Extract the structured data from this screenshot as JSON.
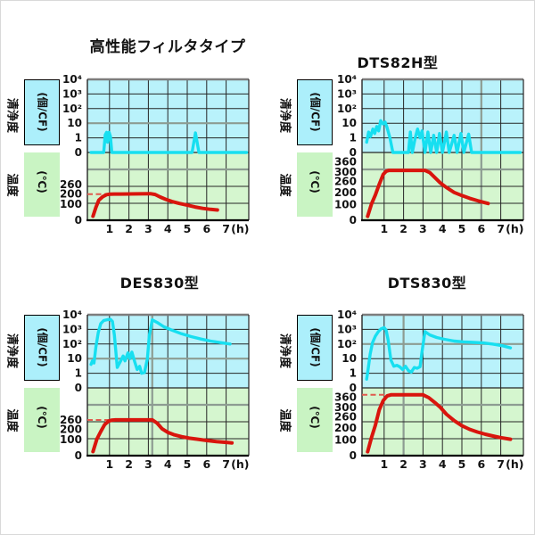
{
  "figure": {
    "background": "#ffffff",
    "description_colors": {
      "clean_area_bg": "#b9f2fb",
      "temp_area_bg": "#d5f6cf",
      "clean_box_bg": "#aceffb",
      "temp_box_bg": "#c9f4c3",
      "clean_curve": "#17dff0",
      "temp_curve": "#d9150d",
      "reference_dash": "#e05a4e",
      "grid_line": "#262626",
      "grid_emphasis": "#8d9c92",
      "top_border": "#7d7d7d",
      "axis": "#000000"
    }
  },
  "chart_data": [
    {
      "id": "high-performance-filter",
      "title": "高性能フィルタタイプ",
      "type": "line",
      "x_axis": {
        "ticks": [
          1,
          2,
          3,
          4,
          5,
          6,
          7
        ],
        "unit": "(h)"
      },
      "clean_axis": {
        "label": "清浄度",
        "unit": "(個/CF)",
        "tick_labels": [
          "10⁴",
          "10³",
          "10²",
          "10",
          "1",
          "0"
        ]
      },
      "temp_axis": {
        "label": "温度",
        "unit": "(℃)",
        "ticks": [
          {
            "value": 260,
            "frac": 0.527
          },
          {
            "value": 200,
            "frac": 0.385
          },
          {
            "value": 100,
            "frac": 0.236
          },
          {
            "value": 0,
            "frac": 0
          }
        ]
      },
      "reference_line": {
        "value": 200,
        "to_hour": 1.0
      },
      "emphasis": {
        "h_levels": [
          2
        ],
        "v_hour": null
      },
      "series": [
        {
          "name": "cleanliness",
          "axis": "clean",
          "points": [
            [
              0.05,
              0
            ],
            [
              0.7,
              0
            ],
            [
              0.78,
              1.6
            ],
            [
              0.85,
              2.4
            ],
            [
              0.9,
              0.7
            ],
            [
              0.98,
              2.4
            ],
            [
              1.05,
              1.2
            ],
            [
              1.12,
              0
            ],
            [
              5.25,
              0
            ],
            [
              5.42,
              2.2
            ],
            [
              5.6,
              0
            ],
            [
              8.05,
              0
            ]
          ]
        },
        {
          "name": "temperature",
          "axis": "temp",
          "points": [
            [
              0.15,
              25
            ],
            [
              0.3,
              80
            ],
            [
              0.45,
              140
            ],
            [
              0.65,
              175
            ],
            [
              0.85,
              195
            ],
            [
              1.05,
              200
            ],
            [
              1.6,
              201
            ],
            [
              2.5,
              202
            ],
            [
              3.1,
              203
            ],
            [
              3.35,
              197
            ],
            [
              3.6,
              172
            ],
            [
              3.9,
              148
            ],
            [
              4.2,
              128
            ],
            [
              4.6,
              108
            ],
            [
              5.0,
              94
            ],
            [
              5.4,
              83
            ],
            [
              5.8,
              74
            ],
            [
              6.2,
              68
            ],
            [
              6.55,
              64
            ]
          ]
        }
      ]
    },
    {
      "id": "dts82h",
      "title": "DTS82H型",
      "type": "line",
      "x_axis": {
        "ticks": [
          1,
          2,
          3,
          4,
          5,
          6,
          7
        ],
        "unit": "(h)"
      },
      "clean_axis": {
        "label": "清浄度",
        "unit": "(個/CF)",
        "tick_labels": [
          "10⁴",
          "10³",
          "10²",
          "10",
          "1",
          "0"
        ]
      },
      "temp_axis": {
        "label": "温度",
        "unit": "(℃)",
        "ticks": [
          {
            "value": 360,
            "frac": 0.86
          },
          {
            "value": 300,
            "frac": 0.71
          },
          {
            "value": 260,
            "frac": 0.57
          },
          {
            "value": 200,
            "frac": 0.41
          },
          {
            "value": 100,
            "frac": 0.23
          },
          {
            "value": 0,
            "frac": 0
          }
        ]
      },
      "reference_line": null,
      "emphasis": {
        "h_levels": [],
        "v_hour": 6
      },
      "series": [
        {
          "name": "cleanliness",
          "axis": "clean",
          "points": [
            [
              0.1,
              0.7
            ],
            [
              0.2,
              2.5
            ],
            [
              0.3,
              1.2
            ],
            [
              0.42,
              4
            ],
            [
              0.52,
              2
            ],
            [
              0.62,
              6
            ],
            [
              0.72,
              3
            ],
            [
              0.82,
              15
            ],
            [
              0.95,
              9
            ],
            [
              1.05,
              12
            ],
            [
              1.15,
              5
            ],
            [
              1.3,
              1
            ],
            [
              1.45,
              0
            ],
            [
              2.25,
              0
            ],
            [
              2.35,
              2.5
            ],
            [
              2.45,
              0
            ],
            [
              2.6,
              1
            ],
            [
              2.72,
              4
            ],
            [
              2.85,
              1
            ],
            [
              2.95,
              3
            ],
            [
              3.1,
              0
            ],
            [
              3.25,
              2.5
            ],
            [
              3.4,
              0
            ],
            [
              3.55,
              1.5
            ],
            [
              3.7,
              0
            ],
            [
              3.85,
              2
            ],
            [
              4.0,
              0
            ],
            [
              4.2,
              2.5
            ],
            [
              4.35,
              0
            ],
            [
              4.6,
              1.5
            ],
            [
              4.75,
              0
            ],
            [
              4.95,
              2
            ],
            [
              5.1,
              0
            ],
            [
              5.35,
              1.8
            ],
            [
              5.5,
              0
            ],
            [
              8.0,
              0
            ]
          ]
        },
        {
          "name": "temperature",
          "axis": "temp",
          "points": [
            [
              0.15,
              25
            ],
            [
              0.35,
              105
            ],
            [
              0.55,
              180
            ],
            [
              0.75,
              245
            ],
            [
              0.95,
              290
            ],
            [
              1.1,
              305
            ],
            [
              1.25,
              310
            ],
            [
              3.1,
              310
            ],
            [
              3.35,
              298
            ],
            [
              3.6,
              278
            ],
            [
              3.9,
              252
            ],
            [
              4.2,
              228
            ],
            [
              4.6,
              200
            ],
            [
              5.0,
              175
            ],
            [
              5.4,
              152
            ],
            [
              5.8,
              133
            ],
            [
              6.1,
              120
            ],
            [
              6.35,
              110
            ]
          ]
        }
      ]
    },
    {
      "id": "des830",
      "title": "DES830型",
      "type": "line",
      "x_axis": {
        "ticks": [
          1,
          2,
          3,
          4,
          5,
          6,
          7
        ],
        "unit": "(h)"
      },
      "clean_axis": {
        "label": "清浄度",
        "unit": "(個/CF)",
        "tick_labels": [
          "10⁴",
          "10³",
          "10²",
          "10",
          "1",
          "0"
        ]
      },
      "temp_axis": {
        "label": "温度",
        "unit": "(℃)",
        "ticks": [
          {
            "value": 260,
            "frac": 0.527
          },
          {
            "value": 200,
            "frac": 0.385
          },
          {
            "value": 100,
            "frac": 0.236
          },
          {
            "value": 0,
            "frac": 0
          }
        ]
      },
      "reference_line": {
        "value": 260,
        "to_hour": 1.0
      },
      "emphasis": {
        "h_levels": [
          2
        ],
        "v_hour": 3.2
      },
      "series": [
        {
          "name": "cleanliness",
          "axis": "clean",
          "points": [
            [
              0.05,
              4
            ],
            [
              0.12,
              7
            ],
            [
              0.2,
              5
            ],
            [
              0.3,
              60
            ],
            [
              0.42,
              600
            ],
            [
              0.55,
              2500
            ],
            [
              0.7,
              4000
            ],
            [
              0.9,
              4600
            ],
            [
              1.05,
              4800
            ],
            [
              1.15,
              3500
            ],
            [
              1.25,
              400
            ],
            [
              1.4,
              2.5
            ],
            [
              1.55,
              6
            ],
            [
              1.7,
              15
            ],
            [
              1.8,
              7
            ],
            [
              1.95,
              25
            ],
            [
              2.05,
              10
            ],
            [
              2.15,
              28
            ],
            [
              2.3,
              6
            ],
            [
              2.42,
              1.8
            ],
            [
              2.55,
              3
            ],
            [
              2.65,
              1
            ],
            [
              2.8,
              1.1
            ],
            [
              2.95,
              10
            ],
            [
              3.05,
              400
            ],
            [
              3.2,
              4500
            ],
            [
              3.45,
              3000
            ],
            [
              3.8,
              1500
            ],
            [
              4.2,
              900
            ],
            [
              4.7,
              500
            ],
            [
              5.2,
              320
            ],
            [
              5.7,
              220
            ],
            [
              6.2,
              160
            ],
            [
              6.7,
              125
            ],
            [
              7.2,
              100
            ]
          ]
        },
        {
          "name": "temperature",
          "axis": "temp",
          "points": [
            [
              0.15,
              25
            ],
            [
              0.35,
              105
            ],
            [
              0.55,
              180
            ],
            [
              0.75,
              230
            ],
            [
              0.95,
              252
            ],
            [
              1.1,
              258
            ],
            [
              1.3,
              260
            ],
            [
              3.2,
              260
            ],
            [
              3.45,
              240
            ],
            [
              3.7,
              205
            ],
            [
              4.0,
              172
            ],
            [
              4.3,
              150
            ],
            [
              4.7,
              130
            ],
            [
              5.1,
              115
            ],
            [
              5.5,
              105
            ],
            [
              6.0,
              95
            ],
            [
              6.5,
              88
            ],
            [
              7.0,
              83
            ],
            [
              7.3,
              80
            ]
          ]
        }
      ]
    },
    {
      "id": "dts830",
      "title": "DTS830型",
      "type": "line",
      "x_axis": {
        "ticks": [
          1,
          2,
          3,
          4,
          5,
          6,
          7
        ],
        "unit": "(h)"
      },
      "clean_axis": {
        "label": "清浄度",
        "unit": "(個/CF)",
        "tick_labels": [
          "10⁴",
          "10³",
          "10²",
          "10",
          "1",
          "0"
        ]
      },
      "temp_axis": {
        "label": "温度",
        "unit": "(℃)",
        "ticks": [
          {
            "value": 360,
            "frac": 0.86
          },
          {
            "value": 300,
            "frac": 0.71
          },
          {
            "value": 260,
            "frac": 0.57
          },
          {
            "value": 200,
            "frac": 0.41
          },
          {
            "value": 100,
            "frac": 0.23
          },
          {
            "value": 0,
            "frac": 0
          }
        ]
      },
      "reference_line": {
        "value": 375,
        "to_hour": 1.3
      },
      "emphasis": {
        "h_levels": [
          3
        ],
        "v_hour": 2
      },
      "series": [
        {
          "name": "cleanliness",
          "axis": "clean",
          "points": [
            [
              0.1,
              0.6
            ],
            [
              0.18,
              2
            ],
            [
              0.28,
              20
            ],
            [
              0.4,
              120
            ],
            [
              0.55,
              350
            ],
            [
              0.7,
              700
            ],
            [
              0.85,
              1100
            ],
            [
              1.0,
              1300
            ],
            [
              1.1,
              900
            ],
            [
              1.2,
              200
            ],
            [
              1.35,
              8
            ],
            [
              1.5,
              3
            ],
            [
              1.65,
              3.5
            ],
            [
              1.8,
              2.8
            ],
            [
              1.95,
              1.8
            ],
            [
              2.1,
              3
            ],
            [
              2.25,
              1.5
            ],
            [
              2.4,
              1.2
            ],
            [
              2.55,
              2.5
            ],
            [
              2.7,
              2.2
            ],
            [
              2.85,
              2.8
            ],
            [
              2.95,
              30
            ],
            [
              3.1,
              700
            ],
            [
              3.35,
              420
            ],
            [
              3.7,
              280
            ],
            [
              4.1,
              210
            ],
            [
              4.6,
              160
            ],
            [
              5.1,
              140
            ],
            [
              5.6,
              128
            ],
            [
              6.1,
              118
            ],
            [
              6.6,
              98
            ],
            [
              7.1,
              75
            ],
            [
              7.5,
              55
            ]
          ]
        },
        {
          "name": "temperature",
          "axis": "temp",
          "points": [
            [
              0.15,
              25
            ],
            [
              0.35,
              120
            ],
            [
              0.55,
              215
            ],
            [
              0.75,
              290
            ],
            [
              0.95,
              340
            ],
            [
              1.15,
              368
            ],
            [
              1.35,
              375
            ],
            [
              3.0,
              375
            ],
            [
              3.3,
              358
            ],
            [
              3.6,
              330
            ],
            [
              3.9,
              300
            ],
            [
              4.2,
              272
            ],
            [
              4.6,
              240
            ],
            [
              5.0,
              212
            ],
            [
              5.4,
              188
            ],
            [
              5.8,
              166
            ],
            [
              6.2,
              148
            ],
            [
              6.6,
              133
            ],
            [
              7.0,
              120
            ],
            [
              7.5,
              107
            ]
          ]
        }
      ]
    }
  ]
}
